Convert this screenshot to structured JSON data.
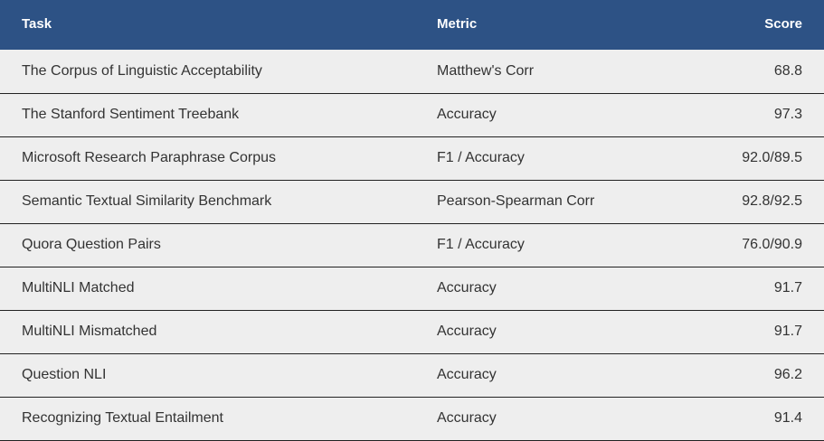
{
  "table": {
    "headers": {
      "task": "Task",
      "metric": "Metric",
      "score": "Score"
    },
    "rows": [
      {
        "task": "The Corpus of Linguistic Acceptability",
        "metric": "Matthew's Corr",
        "score": "68.8"
      },
      {
        "task": "The Stanford Sentiment Treebank",
        "metric": "Accuracy",
        "score": "97.3"
      },
      {
        "task": "Microsoft Research Paraphrase Corpus",
        "metric": "F1 / Accuracy",
        "score": "92.0/89.5"
      },
      {
        "task": "Semantic Textual Similarity Benchmark",
        "metric": "Pearson-Spearman Corr",
        "score": "92.8/92.5"
      },
      {
        "task": "Quora Question Pairs",
        "metric": "F1 / Accuracy",
        "score": "76.0/90.9"
      },
      {
        "task": "MultiNLI Matched",
        "metric": "Accuracy",
        "score": "91.7"
      },
      {
        "task": "MultiNLI Mismatched",
        "metric": "Accuracy",
        "score": "91.7"
      },
      {
        "task": "Question NLI",
        "metric": "Accuracy",
        "score": "96.2"
      },
      {
        "task": "Recognizing Textual Entailment",
        "metric": "Accuracy",
        "score": "91.4"
      }
    ]
  },
  "colors": {
    "header_background": "#2d5285",
    "header_text": "#ffffff",
    "row_background": "#eeeeee",
    "row_text": "#333333",
    "row_divider": "#222222"
  }
}
